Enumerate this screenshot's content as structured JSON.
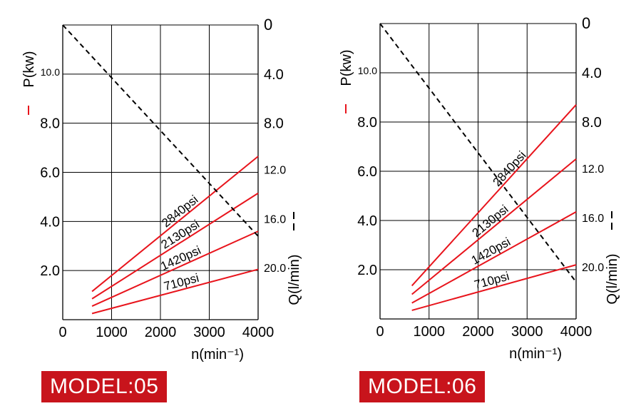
{
  "charts": [
    {
      "model_label": "MODEL:05",
      "chart_data": {
        "type": "line",
        "power_axis": {
          "label": "P(kw)",
          "ticks": [
            "2.0",
            "4.0",
            "6.0",
            "8.0",
            "10.0"
          ],
          "range": [
            0,
            12
          ]
        },
        "flow_axis": {
          "label": "Q(l/min)",
          "ticks": [
            "0",
            "4.0",
            "8.0",
            "12.0",
            "16.0",
            "20.0"
          ],
          "range": [
            0,
            24
          ]
        },
        "x_axis": {
          "label": "n(min⁻¹)",
          "ticks": [
            "0",
            "1000",
            "2000",
            "3000",
            "4000"
          ],
          "range": [
            0,
            4000
          ]
        },
        "grid": true,
        "power_series": [
          {
            "name": "710psi",
            "points": [
              [
                600,
                0.25
              ],
              [
                4000,
                2.05
              ]
            ]
          },
          {
            "name": "1420psi",
            "points": [
              [
                600,
                0.55
              ],
              [
                4000,
                3.6
              ]
            ]
          },
          {
            "name": "2130psi",
            "points": [
              [
                600,
                0.85
              ],
              [
                4000,
                5.15
              ]
            ]
          },
          {
            "name": "2840psi",
            "points": [
              [
                600,
                1.15
              ],
              [
                4000,
                6.65
              ]
            ]
          }
        ],
        "flow_series": {
          "points": [
            [
              0,
              0
            ],
            [
              4000,
              17.2
            ]
          ]
        },
        "colors": {
          "power": "#e8141c",
          "flow": "#000000"
        }
      }
    },
    {
      "model_label": "MODEL:06",
      "chart_data": {
        "type": "line",
        "power_axis": {
          "label": "P(kw)",
          "ticks": [
            "2.0",
            "4.0",
            "6.0",
            "8.0",
            "10.0"
          ],
          "range": [
            0,
            12
          ]
        },
        "flow_axis": {
          "label": "Q(l/min)",
          "ticks": [
            "0",
            "4.0",
            "8.0",
            "12.0",
            "16.0",
            "20.0"
          ],
          "range": [
            0,
            24
          ]
        },
        "x_axis": {
          "label": "n(min⁻¹)",
          "ticks": [
            "0",
            "1000",
            "2000",
            "3000",
            "4000"
          ],
          "range": [
            0,
            4000
          ]
        },
        "grid": true,
        "power_series": [
          {
            "name": "710psi",
            "points": [
              [
                650,
                0.35
              ],
              [
                4000,
                2.2
              ]
            ]
          },
          {
            "name": "1420psi",
            "points": [
              [
                650,
                0.65
              ],
              [
                4000,
                4.35
              ]
            ]
          },
          {
            "name": "2130psi",
            "points": [
              [
                650,
                1.0
              ],
              [
                4000,
                6.5
              ]
            ]
          },
          {
            "name": "2840psi",
            "points": [
              [
                650,
                1.35
              ],
              [
                4000,
                8.7
              ]
            ]
          }
        ],
        "flow_series": {
          "points": [
            [
              0,
              0
            ],
            [
              4000,
              21.0
            ]
          ]
        },
        "colors": {
          "power": "#e8141c",
          "flow": "#000000"
        }
      }
    }
  ]
}
